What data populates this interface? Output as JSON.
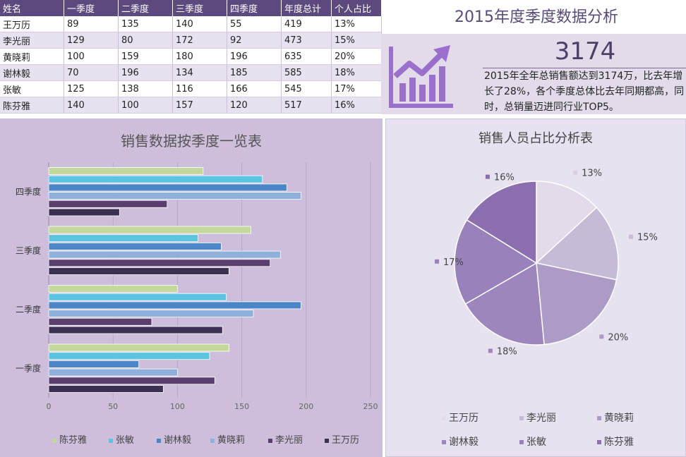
{
  "table": {
    "headers": [
      "姓名",
      "一季度",
      "二季度",
      "三季度",
      "四季度",
      "年度总计",
      "个人占比"
    ],
    "rows": [
      [
        "王万历",
        "89",
        "135",
        "140",
        "55",
        "419",
        "13%"
      ],
      [
        "李光丽",
        "129",
        "80",
        "172",
        "92",
        "473",
        "15%"
      ],
      [
        "黄晓莉",
        "100",
        "159",
        "180",
        "196",
        "635",
        "20%"
      ],
      [
        "谢林毅",
        "70",
        "196",
        "134",
        "185",
        "585",
        "18%"
      ],
      [
        "张敏",
        "125",
        "138",
        "116",
        "166",
        "545",
        "17%"
      ],
      [
        "陈芬雅",
        "140",
        "100",
        "157",
        "120",
        "517",
        "16%"
      ]
    ]
  },
  "summary": {
    "title": "2015年度季度数据分析",
    "big_number": "3174",
    "description": "2015年全年总销售额达到3174万，比去年增长了28%，各个季度总体比去年同期都高，同时，总销量迈进同行业TOP5。",
    "icon": "chart-trend-up-icon"
  },
  "chart_data": [
    {
      "type": "bar",
      "orientation": "horizontal",
      "title": "销售数据按季度一览表",
      "categories": [
        "四季度",
        "三季度",
        "二季度",
        "一季度"
      ],
      "series": [
        {
          "name": "陈芬雅",
          "color": "#c5d89b",
          "values": [
            120,
            157,
            100,
            140
          ]
        },
        {
          "name": "张敏",
          "color": "#5bc4e0",
          "values": [
            166,
            116,
            138,
            125
          ]
        },
        {
          "name": "谢林毅",
          "color": "#4a86c8",
          "values": [
            185,
            134,
            196,
            70
          ]
        },
        {
          "name": "黄晓莉",
          "color": "#8fb0da",
          "values": [
            196,
            180,
            159,
            100
          ]
        },
        {
          "name": "李光丽",
          "color": "#5a3f6e",
          "values": [
            92,
            172,
            80,
            129
          ]
        },
        {
          "name": "王万历",
          "color": "#3b2f52",
          "values": [
            55,
            140,
            135,
            89
          ]
        }
      ],
      "xlim": [
        0,
        250
      ],
      "xticks": [
        "0",
        "50",
        "100",
        "150",
        "200",
        "250"
      ],
      "grid": true,
      "legend_position": "bottom"
    },
    {
      "type": "pie",
      "title": "销售人员占比分析表",
      "labels": [
        "王万历",
        "李光丽",
        "黄晓莉",
        "谢林毅",
        "张敏",
        "陈芬雅"
      ],
      "values": [
        13,
        15,
        20,
        18,
        17,
        16
      ],
      "value_labels": [
        "13%",
        "15%",
        "20%",
        "18%",
        "17%",
        "16%"
      ],
      "colors": [
        "#e3dbea",
        "#c6bbd6",
        "#ad9bc7",
        "#9d86bd",
        "#9982bb",
        "#8c6fae"
      ],
      "legend_position": "bottom"
    }
  ]
}
